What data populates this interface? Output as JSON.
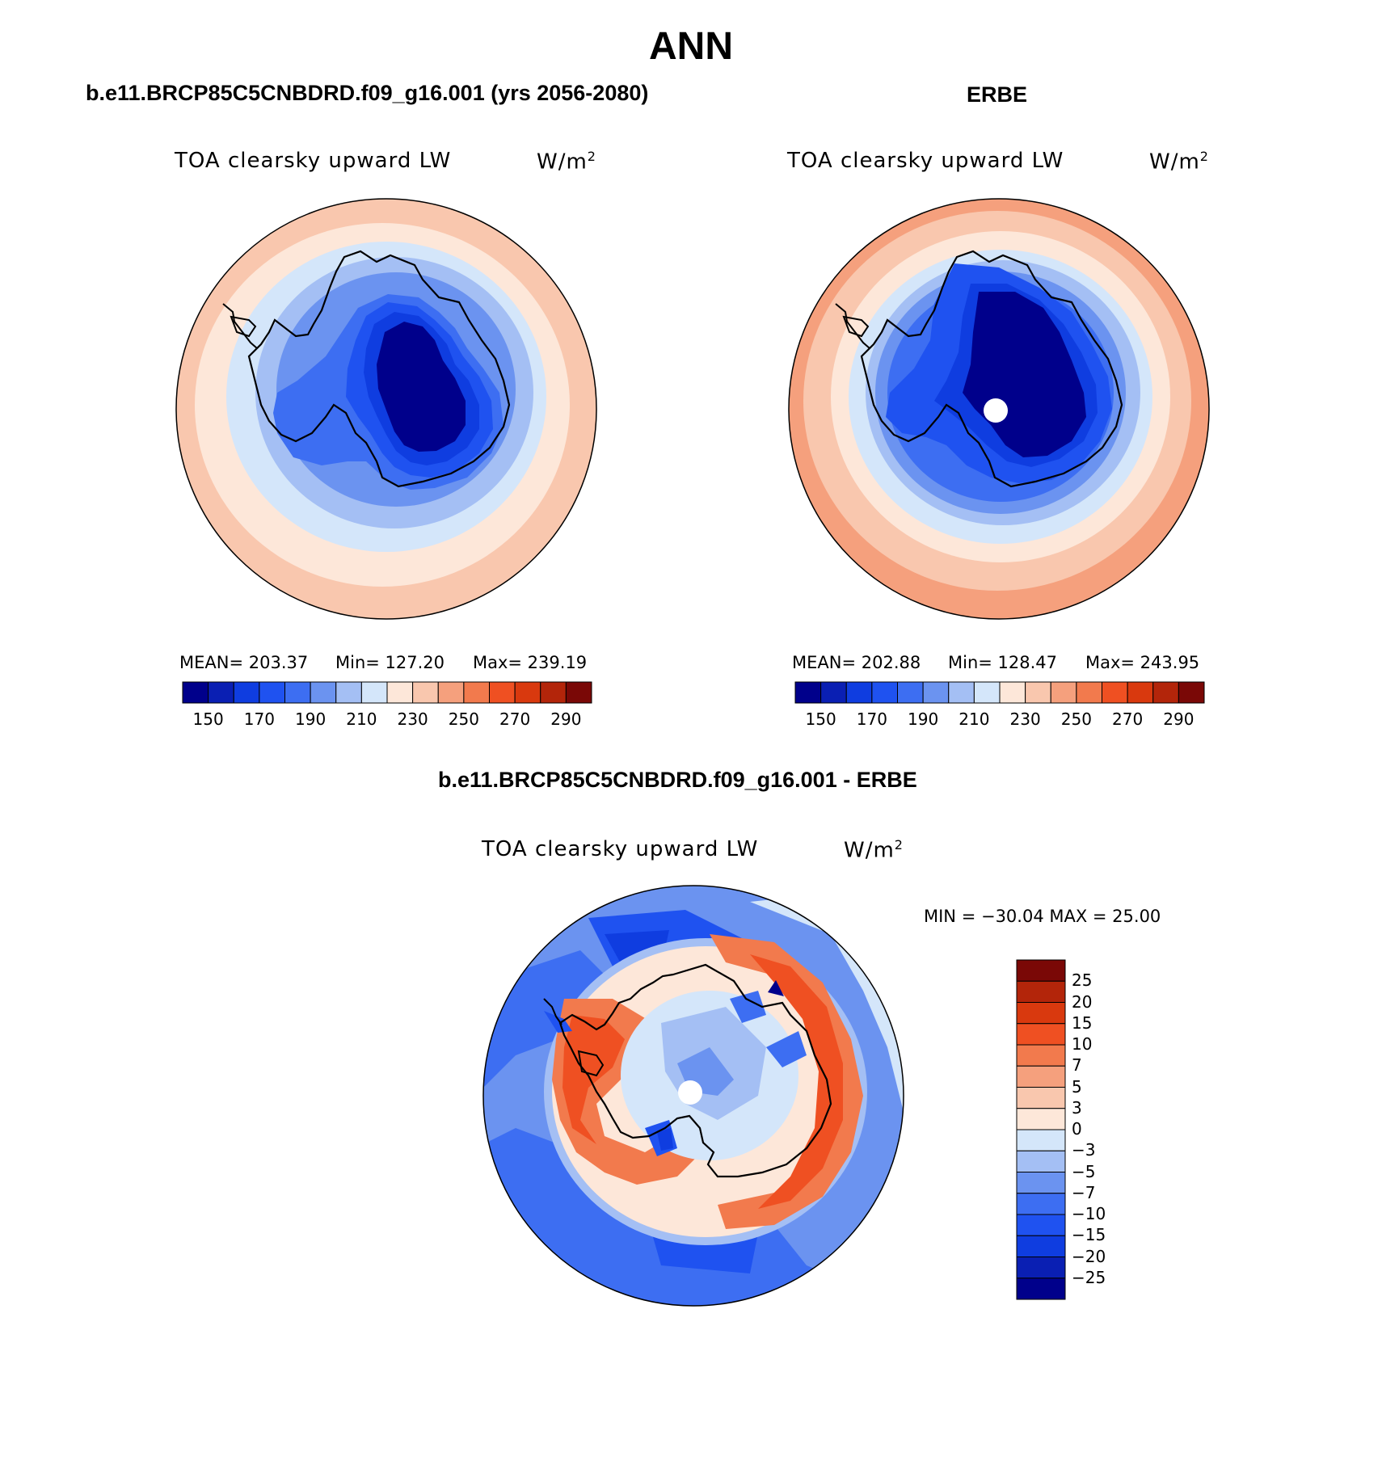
{
  "page_title": "ANN",
  "panels": {
    "model": {
      "case_title": "b.e11.BRCP85C5CNBDRD.f09_g16.001 (yrs 2056-2080)",
      "variable": "TOA clearsky upward LW",
      "units": "W/m",
      "units_sup": "2",
      "stats": {
        "mean": "MEAN= 203.37",
        "min": "Min= 127.20",
        "max": "Max= 239.19"
      },
      "colorbar": {
        "colors": [
          "#00008b",
          "#0a1fb3",
          "#0f3de0",
          "#1f52f0",
          "#3d6ef2",
          "#6b93f0",
          "#a4bff4",
          "#d4e6fa",
          "#fde7d9",
          "#f9c7ae",
          "#f5a07d",
          "#f27a4d",
          "#ef5022",
          "#d9390e",
          "#b3250a",
          "#7a0806"
        ],
        "ticks": [
          "150",
          "170",
          "190",
          "210",
          "230",
          "250",
          "270",
          "290"
        ]
      }
    },
    "obs": {
      "case_title": "ERBE",
      "variable": "TOA clearsky upward LW",
      "units": "W/m",
      "units_sup": "2",
      "stats": {
        "mean": "MEAN= 202.88",
        "min": "Min= 128.47",
        "max": "Max= 243.95"
      },
      "colorbar": {
        "colors": [
          "#00008b",
          "#0a1fb3",
          "#0f3de0",
          "#1f52f0",
          "#3d6ef2",
          "#6b93f0",
          "#a4bff4",
          "#d4e6fa",
          "#fde7d9",
          "#f9c7ae",
          "#f5a07d",
          "#f27a4d",
          "#ef5022",
          "#d9390e",
          "#b3250a",
          "#7a0806"
        ],
        "ticks": [
          "150",
          "170",
          "190",
          "210",
          "230",
          "250",
          "270",
          "290"
        ]
      }
    },
    "diff": {
      "case_title": "b.e11.BRCP85C5CNBDRD.f09_g16.001 - ERBE",
      "variable": "TOA clearsky upward LW",
      "units": "W/m",
      "units_sup": "2",
      "minmax": "MIN = −30.04 MAX =  25.00",
      "colorbar": {
        "colors_top_to_bottom": [
          "#7a0806",
          "#b3250a",
          "#d9390e",
          "#ef5022",
          "#f27a4d",
          "#f5a07d",
          "#f9c7ae",
          "#fde7d9",
          "#d4e6fa",
          "#a4bff4",
          "#6b93f0",
          "#3d6ef2",
          "#1f52f0",
          "#0f3de0",
          "#0a1fb3",
          "#00008b"
        ],
        "ticks_top_to_bottom": [
          "25",
          "20",
          "15",
          "10",
          "7",
          "5",
          "3",
          "0",
          "−3",
          "−5",
          "−7",
          "−10",
          "−15",
          "−20",
          "−25"
        ]
      }
    }
  }
}
